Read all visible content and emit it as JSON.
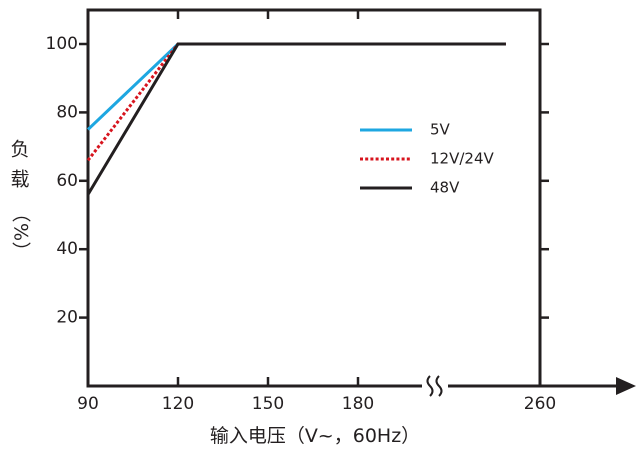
{
  "chart_data": {
    "type": "line",
    "xlabel": "输入电压（V~，60Hz）",
    "ylabel_chars": [
      "负",
      "载",
      "（",
      "%",
      "）"
    ],
    "ylabel": "负载（%）",
    "x_ticks": [
      90,
      120,
      150,
      180,
      260
    ],
    "x_tick_labels": [
      "90",
      "120",
      "150",
      "180",
      "260"
    ],
    "x_axis_break": true,
    "y_ticks": [
      20,
      40,
      60,
      80,
      100
    ],
    "y_tick_labels": [
      "20",
      "40",
      "60",
      "80",
      "100"
    ],
    "ylim": [
      0,
      110
    ],
    "grid": false,
    "legend_position": "right",
    "series": [
      {
        "name": "5V",
        "color": "#1ea7e1",
        "style": "solid",
        "points": [
          [
            90,
            75
          ],
          [
            120,
            100
          ],
          [
            245,
            100
          ]
        ]
      },
      {
        "name": "12V/24V",
        "color": "#d7141e",
        "style": "dotted",
        "points": [
          [
            90,
            66
          ],
          [
            120,
            100
          ],
          [
            245,
            100
          ]
        ]
      },
      {
        "name": "48V",
        "color": "#231f20",
        "style": "solid",
        "points": [
          [
            90,
            56
          ],
          [
            120,
            100
          ],
          [
            245,
            100
          ]
        ]
      }
    ]
  }
}
